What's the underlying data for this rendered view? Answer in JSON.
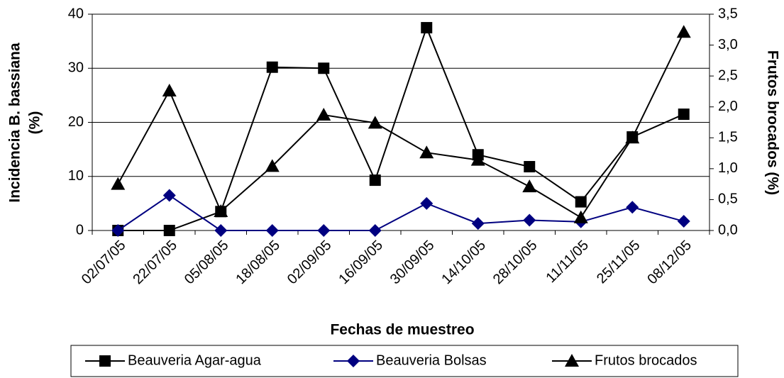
{
  "chart_data": {
    "type": "line",
    "x_label": "Fechas de muestreo",
    "y_label": [
      "Incidencia B. bassiana",
      "(%)"
    ],
    "y2_label": "Frutos brocados (%)",
    "categories": [
      "02/07/05",
      "22/07/05",
      "05/08/05",
      "18/08/05",
      "02/09/05",
      "16/09/05",
      "30/09/05",
      "14/10/05",
      "28/10/05",
      "11/11/05",
      "25/11/05",
      "08/12/05"
    ],
    "series": [
      {
        "name": "Beauveria Agar-agua",
        "color": "#000000",
        "marker": "square",
        "values": [
          0,
          0,
          3.5,
          30.2,
          30,
          9.3,
          37.5,
          14,
          11.8,
          5.3,
          17.3,
          21.5
        ]
      },
      {
        "name": "Beauveria Bolsas",
        "color": "#000080",
        "marker": "diamond",
        "values": [
          0,
          6.5,
          0,
          0,
          0,
          0,
          5,
          1.3,
          1.9,
          1.6,
          4.3,
          1.7
        ]
      },
      {
        "name": "Frutos brocados",
        "color": "#000000",
        "marker": "triangle",
        "axis": "y2",
        "values": [
          0.75,
          2.26,
          0.31,
          1.04,
          1.87,
          1.74,
          1.26,
          1.14,
          0.71,
          0.21,
          1.5,
          3.21
        ]
      }
    ],
    "ylim": [
      0,
      40
    ],
    "yticks": [
      0,
      10,
      20,
      30,
      40
    ],
    "y2lim": [
      0,
      3.5
    ],
    "y2ticks": [
      {
        "value": 0,
        "label": "0,0"
      },
      {
        "value": 0.5,
        "label": "0,5"
      },
      {
        "value": 1,
        "label": "1,0"
      },
      {
        "value": 1.5,
        "label": "1,5"
      },
      {
        "value": 2,
        "label": "2,0"
      },
      {
        "value": 2.5,
        "label": "2,5"
      },
      {
        "value": 3,
        "label": "3,0"
      },
      {
        "value": 3.5,
        "label": "3,5"
      }
    ],
    "grid": true,
    "legend": "bottom"
  }
}
